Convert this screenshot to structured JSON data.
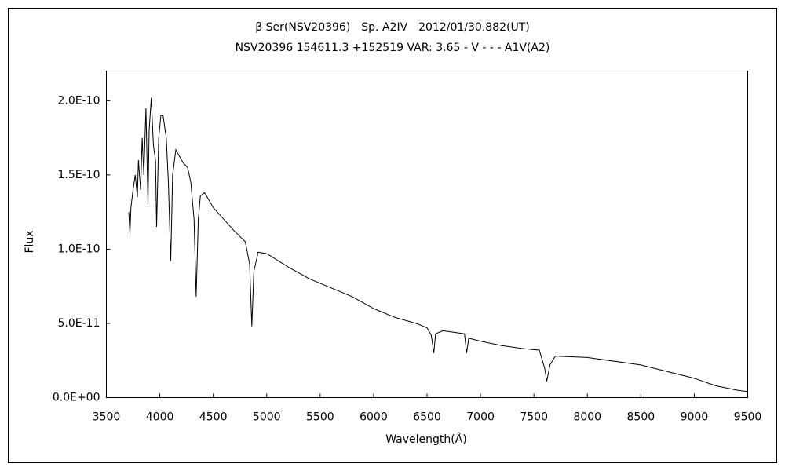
{
  "chart_data": {
    "type": "line",
    "title": "β Ser(NSV20396)　Sp. A2IV　2012/01/30.882(UT)",
    "subtitle": "NSV20396 154611.3 +152519 VAR: 3.65 - V - - - A1V(A2)",
    "x_label": "Wavelength(Å)",
    "y_label": "Flux",
    "color": "#000000",
    "grid": false,
    "xlim": [
      3500,
      9500
    ],
    "xticks": [
      3500,
      4000,
      4500,
      5000,
      5500,
      6000,
      6500,
      7000,
      7500,
      8000,
      8500,
      9000,
      9500
    ],
    "ylim": [
      0,
      2.2e-10
    ],
    "yticks": [
      {
        "value": 0,
        "label": "0.0E+00"
      },
      {
        "value": 5e-11,
        "label": "5.0E-11"
      },
      {
        "value": 1e-10,
        "label": "1.0E-10"
      },
      {
        "value": 1.5e-10,
        "label": "1.5E-10"
      },
      {
        "value": 2e-10,
        "label": "2.0E-10"
      }
    ],
    "x": [
      3710,
      3720,
      3730,
      3750,
      3770,
      3790,
      3800,
      3820,
      3835,
      3850,
      3870,
      3889,
      3900,
      3920,
      3940,
      3960,
      3970,
      3990,
      4010,
      4030,
      4060,
      4080,
      4102,
      4120,
      4150,
      4180,
      4220,
      4260,
      4290,
      4320,
      4340,
      4360,
      4380,
      4420,
      4500,
      4600,
      4700,
      4800,
      4840,
      4861,
      4880,
      4920,
      5000,
      5200,
      5400,
      5600,
      5800,
      6000,
      6200,
      6400,
      6500,
      6540,
      6563,
      6580,
      6650,
      6850,
      6870,
      6890,
      7000,
      7200,
      7400,
      7550,
      7600,
      7620,
      7650,
      7700,
      8000,
      8500,
      9000,
      9200,
      9400,
      9500
    ],
    "values": [
      1.25e-10,
      1.1e-10,
      1.28e-10,
      1.4e-10,
      1.5e-10,
      1.35e-10,
      1.6e-10,
      1.4e-10,
      1.75e-10,
      1.5e-10,
      1.95e-10,
      1.3e-10,
      1.8e-10,
      2.02e-10,
      1.7e-10,
      1.6e-10,
      1.15e-10,
      1.75e-10,
      1.9e-10,
      1.9e-10,
      1.75e-10,
      1.45e-10,
      9.2e-11,
      1.5e-10,
      1.67e-10,
      1.63e-10,
      1.58e-10,
      1.55e-10,
      1.45e-10,
      1.2e-10,
      6.8e-11,
      1.2e-10,
      1.36e-10,
      1.38e-10,
      1.28e-10,
      1.2e-10,
      1.12e-10,
      1.05e-10,
      9e-11,
      4.8e-11,
      8.5e-11,
      9.8e-11,
      9.7e-11,
      8.8e-11,
      8e-11,
      7.4e-11,
      6.8e-11,
      6e-11,
      5.4e-11,
      5e-11,
      4.7e-11,
      4.2e-11,
      3e-11,
      4.3e-11,
      4.5e-11,
      4.3e-11,
      3e-11,
      4e-11,
      3.8e-11,
      3.5e-11,
      3.3e-11,
      3.2e-11,
      2e-11,
      1.1e-11,
      2.2e-11,
      2.8e-11,
      2.7e-11,
      2.2e-11,
      1.3e-11,
      8e-12,
      5e-12,
      4e-12
    ]
  }
}
